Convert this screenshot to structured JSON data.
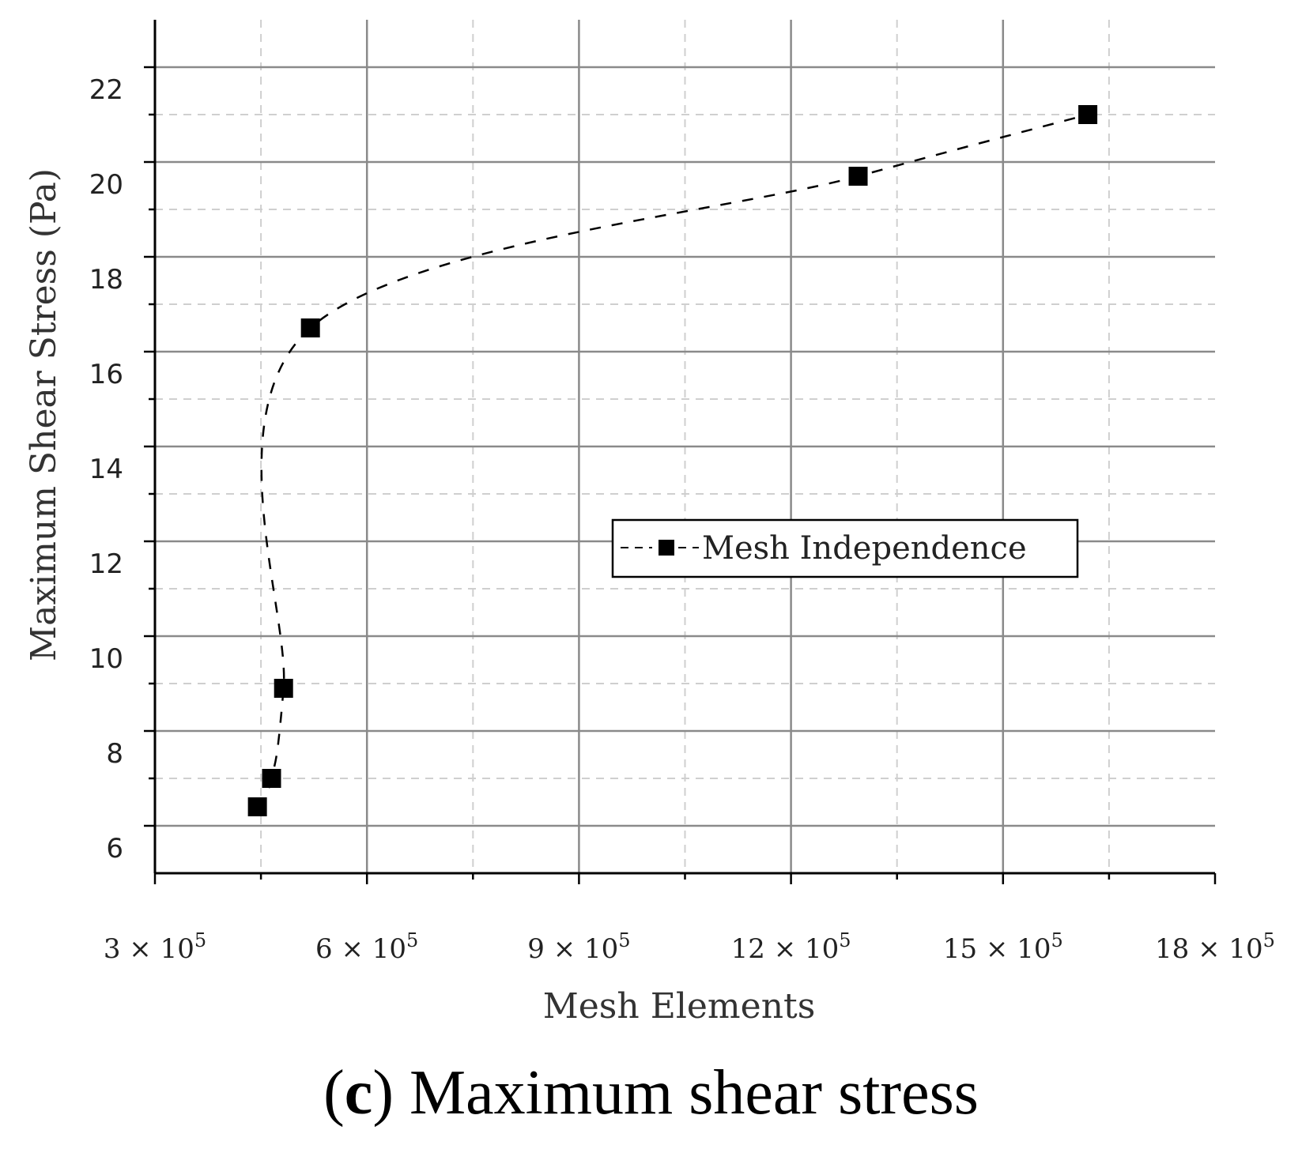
{
  "chart_data": {
    "type": "line",
    "title": "",
    "xlabel": "Mesh Elements",
    "ylabel": "Maximum Shear Stress (Pa)",
    "xlim": [
      300000,
      1800000
    ],
    "ylim": [
      5,
      23
    ],
    "x_ticks": [
      {
        "value": 300000,
        "mantissa": "3",
        "times": "×",
        "base": "10",
        "exp": "5"
      },
      {
        "value": 600000,
        "mantissa": "6",
        "times": "×",
        "base": "10",
        "exp": "5"
      },
      {
        "value": 900000,
        "mantissa": "9",
        "times": "×",
        "base": "10",
        "exp": "5"
      },
      {
        "value": 1200000,
        "mantissa": "12",
        "times": "×",
        "base": "10",
        "exp": "5"
      },
      {
        "value": 1500000,
        "mantissa": "15",
        "times": "×",
        "base": "10",
        "exp": "5"
      },
      {
        "value": 1800000,
        "mantissa": "18",
        "times": "×",
        "base": "10",
        "exp": "5"
      }
    ],
    "y_ticks": [
      6,
      8,
      10,
      12,
      14,
      16,
      18,
      20,
      22
    ],
    "series": [
      {
        "name": "Mesh Independence",
        "style": "dashed",
        "marker": "square",
        "color": "#000000",
        "x": [
          445000,
          465000,
          482000,
          520000,
          1295000,
          1620000
        ],
        "y": [
          6.4,
          7.0,
          8.9,
          16.5,
          19.7,
          21.0
        ]
      }
    ],
    "legend": {
      "position": "center-right",
      "entries": [
        "Mesh Independence"
      ]
    },
    "grid": true
  },
  "caption": {
    "letter": "c",
    "text": " Maximum shear stress"
  }
}
